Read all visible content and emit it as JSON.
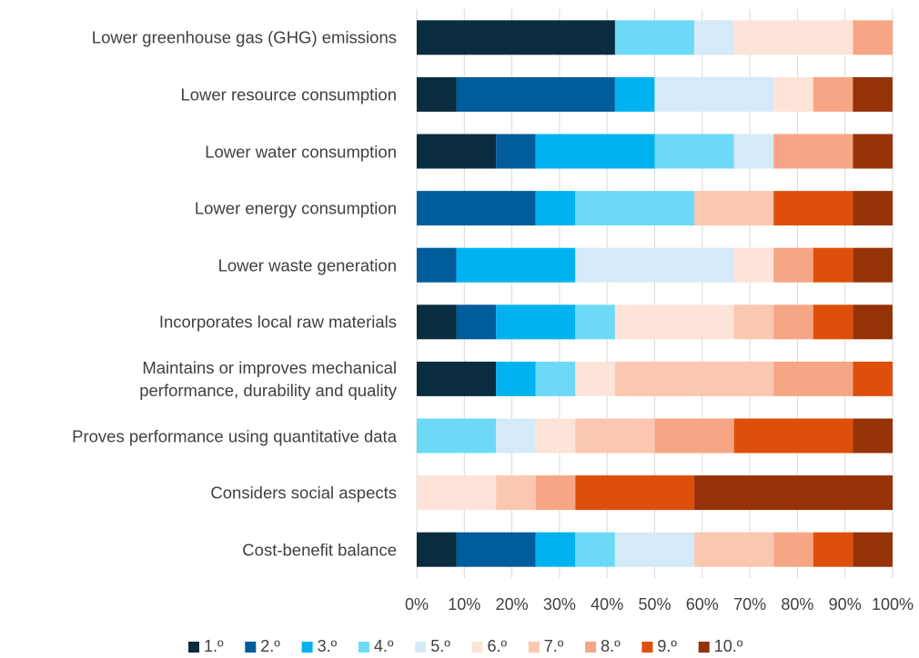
{
  "chart_data": {
    "type": "stacked_bar_horizontal",
    "categories": [
      "Lower greenhouse gas (GHG) emissions",
      "Lower resource consumption",
      "Lower water consumption",
      "Lower energy consumption",
      "Lower waste generation",
      "Incorporates local raw materials",
      "Maintains or improves mechanical\nperformance, durability and quality",
      "Proves performance using quantitative data",
      "Considers social aspects",
      "Cost-benefit balance"
    ],
    "series": [
      {
        "name": "1.º",
        "color": "#0a2c3f",
        "values": [
          41.67,
          8.33,
          16.67,
          0,
          0,
          8.33,
          16.67,
          0,
          0,
          8.33
        ]
      },
      {
        "name": "2.º",
        "color": "#005c9a",
        "values": [
          0,
          33.33,
          8.33,
          25,
          8.33,
          8.33,
          0,
          0,
          0,
          16.67
        ]
      },
      {
        "name": "3.º",
        "color": "#00b2ef",
        "values": [
          0,
          8.33,
          25,
          8.33,
          25,
          16.67,
          8.33,
          0,
          0,
          8.33
        ]
      },
      {
        "name": "4.º",
        "color": "#6cdaf6",
        "values": [
          16.67,
          0,
          16.67,
          25,
          0,
          8.33,
          8.33,
          16.67,
          0,
          8.33
        ]
      },
      {
        "name": "5.º",
        "color": "#d5eaf8",
        "values": [
          8.33,
          25,
          8.33,
          0,
          33.33,
          0,
          0,
          8.33,
          0,
          16.67
        ]
      },
      {
        "name": "6.º",
        "color": "#fde3d8",
        "values": [
          25,
          8.33,
          0,
          0,
          8.33,
          25,
          8.33,
          8.33,
          16.67,
          0
        ]
      },
      {
        "name": "7.º",
        "color": "#fbc7b0",
        "values": [
          0,
          0,
          0,
          16.67,
          0,
          8.33,
          33.33,
          16.67,
          8.33,
          16.67
        ]
      },
      {
        "name": "8.º",
        "color": "#f6a684",
        "values": [
          8.33,
          8.33,
          16.67,
          0,
          8.33,
          8.33,
          16.67,
          16.67,
          8.33,
          8.33
        ]
      },
      {
        "name": "9.º",
        "color": "#df4f0c",
        "values": [
          0,
          0,
          0,
          16.67,
          8.33,
          8.33,
          8.33,
          25,
          25,
          8.33
        ]
      },
      {
        "name": "10.º",
        "color": "#953208",
        "values": [
          0,
          8.33,
          8.33,
          8.33,
          8.33,
          8.33,
          0,
          8.33,
          41.67,
          8.33
        ]
      }
    ],
    "xlim": [
      0,
      100
    ],
    "xticks": [
      {
        "value": 0,
        "label": "0%"
      },
      {
        "value": 10,
        "label": "10%"
      },
      {
        "value": 20,
        "label": "20%"
      },
      {
        "value": 30,
        "label": "30%"
      },
      {
        "value": 40,
        "label": "40%"
      },
      {
        "value": 50,
        "label": "50%"
      },
      {
        "value": 60,
        "label": "60%"
      },
      {
        "value": 70,
        "label": "70%"
      },
      {
        "value": 80,
        "label": "80%"
      },
      {
        "value": 90,
        "label": "90%"
      },
      {
        "value": 100,
        "label": "100%"
      }
    ],
    "grid": true,
    "legend": "bottom"
  }
}
